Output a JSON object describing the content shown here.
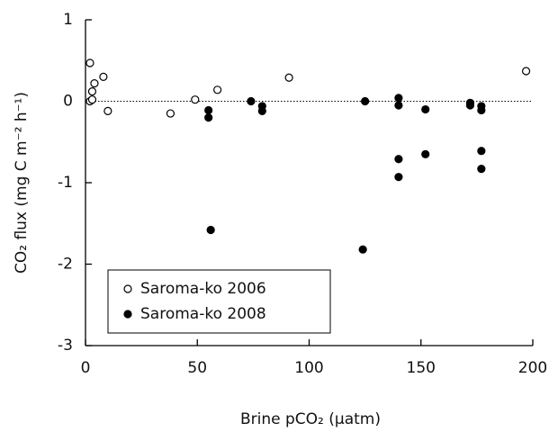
{
  "chart_data": {
    "type": "scatter",
    "x_label": "Brine pCO₂ (µatm)",
    "y_label": "CO₂ flux (mg C m⁻² h⁻¹)",
    "xlim": [
      0,
      200
    ],
    "xticks": [
      0,
      50,
      100,
      150,
      200
    ],
    "ylim": [
      -3,
      1
    ],
    "yticks": [
      -3,
      -2,
      -1,
      0,
      1
    ],
    "reference_line": 0,
    "legend": "bottom-left",
    "series": [
      {
        "name": "Saroma-ko 2006",
        "marker": "open",
        "color": "#000000",
        "x": [
          2,
          2,
          3,
          4,
          3,
          8,
          10,
          38,
          49,
          59,
          91,
          197
        ],
        "values": [
          0.47,
          0.0,
          0.12,
          0.22,
          0.02,
          0.3,
          -0.12,
          -0.15,
          0.02,
          0.14,
          0.29,
          0.37
        ]
      },
      {
        "name": "Saroma-ko 2008",
        "marker": "filled",
        "color": "#000000",
        "x": [
          55,
          55,
          56,
          74,
          79,
          79,
          125,
          124,
          140,
          140,
          140,
          140,
          152,
          152,
          172,
          172,
          177,
          177,
          177,
          177
        ],
        "values": [
          -0.11,
          -0.2,
          -1.58,
          0.0,
          -0.06,
          -0.12,
          0.0,
          -1.82,
          0.04,
          -0.05,
          -0.71,
          -0.93,
          -0.1,
          -0.65,
          -0.02,
          -0.05,
          -0.06,
          -0.11,
          -0.61,
          -0.83
        ]
      }
    ]
  }
}
